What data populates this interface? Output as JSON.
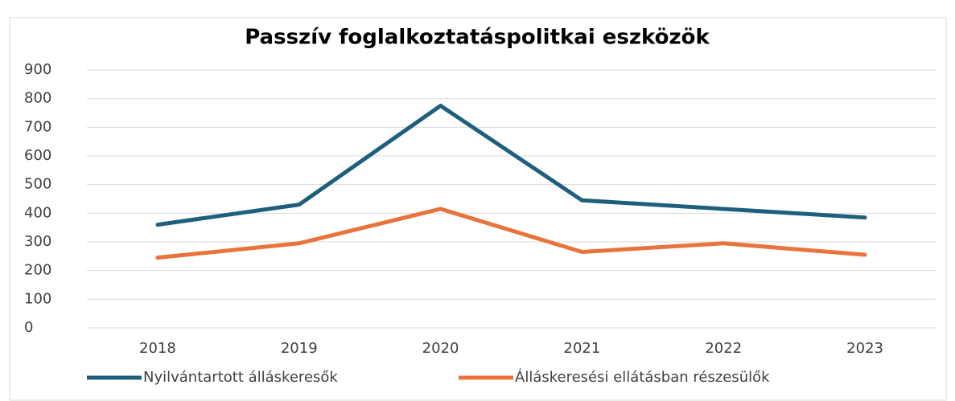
{
  "chart_data": {
    "type": "line",
    "title": "Passzív foglalkoztatáspolitkai eszközök",
    "categories": [
      "2018",
      "2019",
      "2020",
      "2021",
      "2022",
      "2023"
    ],
    "series": [
      {
        "name": "Nyilvántartott álláskeresők",
        "color": "#1f5f7e",
        "values": [
          360,
          430,
          775,
          445,
          415,
          385
        ]
      },
      {
        "name": "Álláskeresési ellátásban részesülők",
        "color": "#e8743b",
        "values": [
          245,
          295,
          415,
          265,
          295,
          255
        ]
      }
    ],
    "ylim": [
      0,
      900
    ],
    "yticks": [
      0,
      100,
      200,
      300,
      400,
      500,
      600,
      700,
      800,
      900
    ],
    "grid": true,
    "legend": "bottom"
  }
}
